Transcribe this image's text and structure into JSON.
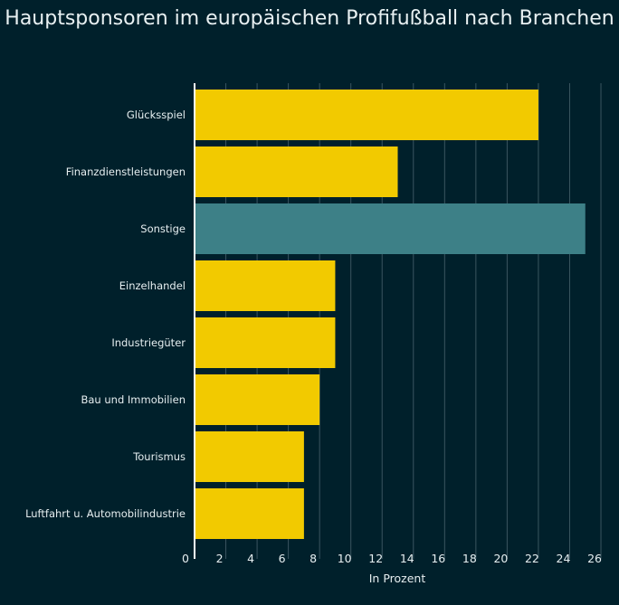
{
  "chart_data": {
    "type": "bar",
    "orientation": "horizontal",
    "title": "Hauptsponsoren im europäischen Profifußball nach Branchen",
    "xlabel": "In Prozent",
    "ylabel": "",
    "categories": [
      "Glücksspiel",
      "Finanzdienstleistungen",
      "Sonstige",
      "Einzelhandel",
      "Industriegüter",
      "Bau und Immobilien",
      "Tourismus",
      "Luftfahrt u. Automobilindustrie"
    ],
    "values": [
      22,
      13,
      25,
      9,
      9,
      8,
      7,
      7
    ],
    "highlight_category": "Sonstige",
    "xlim": [
      0,
      26
    ],
    "xticks": [
      0,
      2,
      4,
      6,
      8,
      10,
      12,
      14,
      16,
      18,
      20,
      22,
      24,
      26
    ],
    "grid": "vertical",
    "colors": {
      "bar": "#f2ca00",
      "highlight": "#3d8087",
      "background": "#00202b",
      "grid": "#3a5560"
    }
  }
}
